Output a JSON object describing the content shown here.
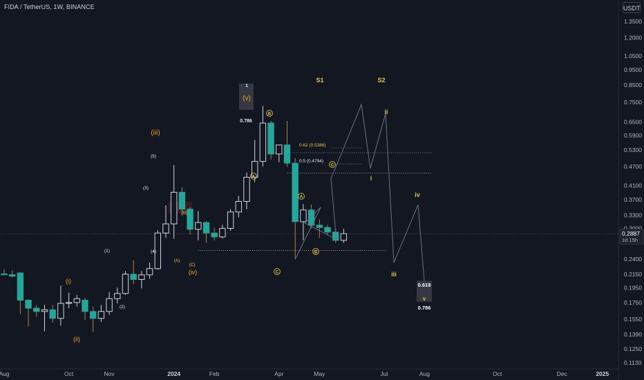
{
  "header": {
    "symbol_title": "FIDA / TetherUS, 1W, BINANCE",
    "currency": "USDT"
  },
  "price_axis": {
    "ticks": [
      "1.3500",
      "1.2000",
      "1.0500",
      "0.9500",
      "0.8500",
      "0.7500",
      "0.6500",
      "0.5900",
      "0.5300",
      "0.4700",
      "0.4100",
      "0.3700",
      "0.3300",
      "0.3000",
      "0.2400",
      "0.2150",
      "0.1950",
      "0.1750",
      "0.1550",
      "0.1390",
      "0.1250",
      "0.1130"
    ],
    "current_price": "0.2887",
    "countdown": "1d 15h"
  },
  "time_axis": {
    "ticks": [
      "Aug",
      "Oct",
      "Nov",
      "2024",
      "Feb",
      "Apr",
      "May",
      "Jul",
      "Aug",
      "Oct",
      "Dec",
      "2025"
    ]
  },
  "colors": {
    "background": "#131722",
    "up_candle": "#ffffff",
    "down_candle": "#26a69a",
    "wave_label": "#f7a21b",
    "projection_label": "#e8c547",
    "projection_line": "#6b7280"
  },
  "chart_data": {
    "type": "candlestick",
    "scale": "log",
    "ylim": [
      0.109,
      1.45
    ],
    "candles": [
      {
        "week": "2023-08-07",
        "o": 0.2155,
        "h": 0.2225,
        "l": 0.2138,
        "c": 0.2142
      },
      {
        "week": "2023-08-14",
        "o": 0.2142,
        "h": 0.221,
        "l": 0.21,
        "c": 0.212
      },
      {
        "week": "2023-08-21",
        "o": 0.217,
        "h": 0.218,
        "l": 0.161,
        "c": 0.178
      },
      {
        "week": "2023-08-28",
        "o": 0.178,
        "h": 0.179,
        "l": 0.147,
        "c": 0.168
      },
      {
        "week": "2023-09-04",
        "o": 0.168,
        "h": 0.172,
        "l": 0.158,
        "c": 0.164
      },
      {
        "week": "2023-09-11",
        "o": 0.164,
        "h": 0.172,
        "l": 0.142,
        "c": 0.166
      },
      {
        "week": "2023-09-18",
        "o": 0.166,
        "h": 0.172,
        "l": 0.151,
        "c": 0.156
      },
      {
        "week": "2023-09-25",
        "o": 0.156,
        "h": 0.198,
        "l": 0.148,
        "c": 0.174
      },
      {
        "week": "2023-10-02",
        "o": 0.174,
        "h": 0.188,
        "l": 0.168,
        "c": 0.175
      },
      {
        "week": "2023-10-09",
        "o": 0.175,
        "h": 0.185,
        "l": 0.17,
        "c": 0.18
      },
      {
        "week": "2023-10-16",
        "o": 0.178,
        "h": 0.181,
        "l": 0.154,
        "c": 0.164
      },
      {
        "week": "2023-10-23",
        "o": 0.164,
        "h": 0.17,
        "l": 0.141,
        "c": 0.156
      },
      {
        "week": "2023-10-30",
        "o": 0.156,
        "h": 0.172,
        "l": 0.152,
        "c": 0.164
      },
      {
        "week": "2023-11-06",
        "o": 0.164,
        "h": 0.189,
        "l": 0.16,
        "c": 0.18
      },
      {
        "week": "2023-11-13",
        "o": 0.18,
        "h": 0.195,
        "l": 0.174,
        "c": 0.187
      },
      {
        "week": "2023-11-20",
        "o": 0.187,
        "h": 0.22,
        "l": 0.185,
        "c": 0.215
      },
      {
        "week": "2023-11-27",
        "o": 0.215,
        "h": 0.238,
        "l": 0.2,
        "c": 0.207
      },
      {
        "week": "2023-12-04",
        "o": 0.207,
        "h": 0.22,
        "l": 0.194,
        "c": 0.214
      },
      {
        "week": "2023-12-11",
        "o": 0.214,
        "h": 0.234,
        "l": 0.208,
        "c": 0.224
      },
      {
        "week": "2023-12-18",
        "o": 0.224,
        "h": 0.296,
        "l": 0.222,
        "c": 0.29
      },
      {
        "week": "2023-12-25",
        "o": 0.29,
        "h": 0.355,
        "l": 0.28,
        "c": 0.31
      },
      {
        "week": "2024-01-01",
        "o": 0.31,
        "h": 0.475,
        "l": 0.278,
        "c": 0.39
      },
      {
        "week": "2024-01-08",
        "o": 0.39,
        "h": 0.405,
        "l": 0.33,
        "c": 0.345
      },
      {
        "week": "2024-01-15",
        "o": 0.345,
        "h": 0.35,
        "l": 0.287,
        "c": 0.298
      },
      {
        "week": "2024-01-22",
        "o": 0.298,
        "h": 0.34,
        "l": 0.275,
        "c": 0.313
      },
      {
        "week": "2024-01-29",
        "o": 0.313,
        "h": 0.316,
        "l": 0.27,
        "c": 0.29
      },
      {
        "week": "2024-02-05",
        "o": 0.29,
        "h": 0.302,
        "l": 0.275,
        "c": 0.282
      },
      {
        "week": "2024-02-12",
        "o": 0.282,
        "h": 0.308,
        "l": 0.279,
        "c": 0.3
      },
      {
        "week": "2024-02-19",
        "o": 0.3,
        "h": 0.345,
        "l": 0.295,
        "c": 0.338
      },
      {
        "week": "2024-02-26",
        "o": 0.338,
        "h": 0.38,
        "l": 0.325,
        "c": 0.365
      },
      {
        "week": "2024-03-04",
        "o": 0.365,
        "h": 0.45,
        "l": 0.345,
        "c": 0.435
      },
      {
        "week": "2024-03-11",
        "o": 0.435,
        "h": 0.57,
        "l": 0.42,
        "c": 0.488
      },
      {
        "week": "2024-03-18",
        "o": 0.488,
        "h": 0.73,
        "l": 0.47,
        "c": 0.645
      },
      {
        "week": "2024-03-25",
        "o": 0.645,
        "h": 0.655,
        "l": 0.495,
        "c": 0.515
      },
      {
        "week": "2024-04-01",
        "o": 0.515,
        "h": 0.55,
        "l": 0.485,
        "c": 0.55
      },
      {
        "week": "2024-04-08",
        "o": 0.55,
        "h": 0.655,
        "l": 0.47,
        "c": 0.482
      },
      {
        "week": "2024-04-15",
        "o": 0.482,
        "h": 0.5,
        "l": 0.24,
        "c": 0.315
      },
      {
        "week": "2024-04-22",
        "o": 0.315,
        "h": 0.358,
        "l": 0.275,
        "c": 0.343
      },
      {
        "week": "2024-04-29",
        "o": 0.343,
        "h": 0.357,
        "l": 0.3,
        "c": 0.307
      },
      {
        "week": "2024-05-06",
        "o": 0.307,
        "h": 0.32,
        "l": 0.28,
        "c": 0.302
      },
      {
        "week": "2024-05-13",
        "o": 0.302,
        "h": 0.308,
        "l": 0.285,
        "c": 0.292
      },
      {
        "week": "2024-05-20",
        "o": 0.292,
        "h": 0.299,
        "l": 0.27,
        "c": 0.275
      },
      {
        "week": "2024-05-27",
        "o": 0.275,
        "h": 0.299,
        "l": 0.27,
        "c": 0.2887
      }
    ],
    "fib_levels": [
      {
        "label": "0.62 (0.5386)",
        "price": 0.5386
      },
      {
        "label": "0.5 (0.4794)",
        "price": 0.4794
      }
    ],
    "horizontal_levels": [
      0.52,
      0.448,
      0.2555
    ],
    "wave_labels": {
      "orange": [
        "(iii)",
        "(i)",
        "(ii)",
        "(iv)",
        "(v)"
      ],
      "white": [
        "(1)",
        "(2)",
        "(3)",
        "(4)",
        "(5)",
        "1",
        "0.786"
      ],
      "yellow_small": [
        "(B)",
        "(A)",
        "(C)"
      ],
      "circled": [
        "B",
        "A",
        "C",
        "A",
        "B",
        "C"
      ],
      "projection": [
        "S1",
        "S2",
        "ii",
        "i",
        "iv",
        "iii",
        "v",
        "0.618",
        "0.786"
      ]
    }
  }
}
